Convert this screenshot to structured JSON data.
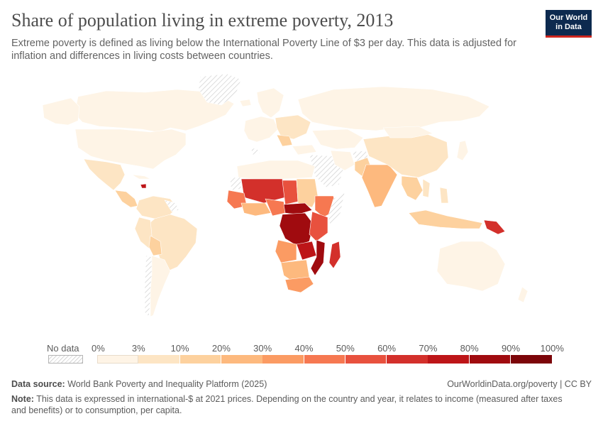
{
  "header": {
    "title": "Share of population living in extreme poverty, 2013",
    "subtitle": "Extreme poverty is defined as living below the International Poverty Line of $3 per day. This data is adjusted for inflation and differences in living costs between countries."
  },
  "logo": {
    "line1": "Our World",
    "line2": "in Data"
  },
  "legend": {
    "no_data_label": "No data",
    "ticks": [
      "0%",
      "3%",
      "10%",
      "20%",
      "30%",
      "40%",
      "50%",
      "60%",
      "70%",
      "80%",
      "90%",
      "100%"
    ],
    "bins": [
      {
        "from": 0,
        "to": 3,
        "color": "#fef4e6"
      },
      {
        "from": 3,
        "to": 10,
        "color": "#fde5c4"
      },
      {
        "from": 10,
        "to": 20,
        "color": "#fdd19e"
      },
      {
        "from": 20,
        "to": 30,
        "color": "#fdb97e"
      },
      {
        "from": 30,
        "to": 40,
        "color": "#fb9b63"
      },
      {
        "from": 40,
        "to": 50,
        "color": "#f67851"
      },
      {
        "from": 50,
        "to": 60,
        "color": "#e8513e"
      },
      {
        "from": 60,
        "to": 70,
        "color": "#d3302b"
      },
      {
        "from": 70,
        "to": 80,
        "color": "#bd1518"
      },
      {
        "from": 80,
        "to": 90,
        "color": "#a00b0f"
      },
      {
        "from": 90,
        "to": 100,
        "color": "#7c0509"
      }
    ],
    "no_data_color": "#f3f3f3"
  },
  "footer": {
    "source_label": "Data source:",
    "source_text": "World Bank Poverty and Inequality Platform (2025)",
    "attribution": "OurWorldinData.org/poverty | CC BY",
    "note_label": "Note:",
    "note_text": "This data is expressed in international-$ at 2021 prices. Depending on the country and year, it relates to income (measured after taxes and benefits) or to consumption, per capita."
  }
}
